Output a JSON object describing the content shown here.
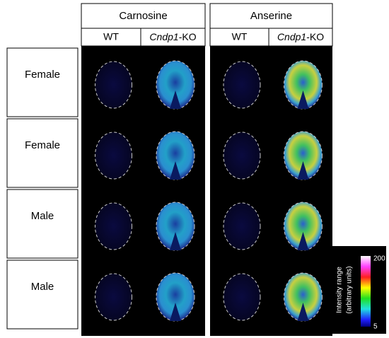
{
  "header": {
    "columns": [
      "Carnosine",
      "Anserine"
    ],
    "subcolumns": [
      {
        "label": "WT"
      },
      {
        "gene": "Cndp1",
        "suffix": "-KO"
      }
    ]
  },
  "rows": [
    "Female",
    "Female",
    "Male",
    "Male"
  ],
  "colorbar": {
    "title": [
      "Intensity range",
      "(arbitrary units)"
    ],
    "max": 200,
    "min": 5
  }
}
